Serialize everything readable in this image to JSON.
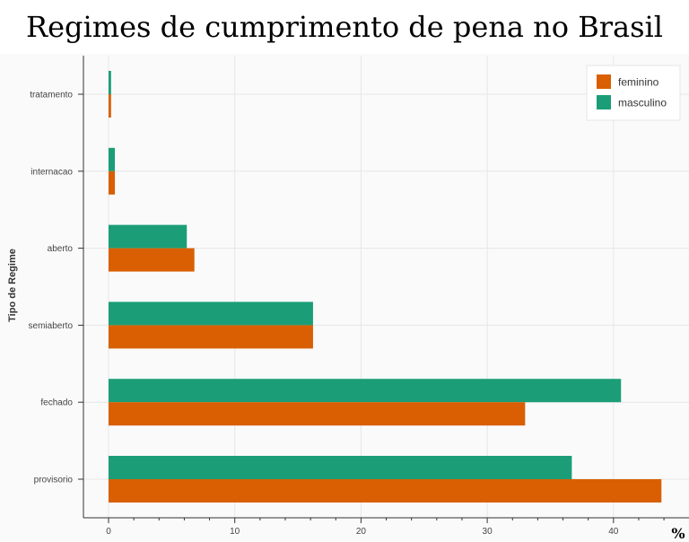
{
  "chart_data": {
    "type": "bar",
    "orientation": "horizontal",
    "title": "Regimes de cumprimento de pena no Brasil",
    "ylabel": "Tipo de Regime",
    "xlabel": "",
    "unit_label": "%",
    "categories": [
      "tratamento",
      "internacao",
      "aberto",
      "semiaberto",
      "fechado",
      "provisorio"
    ],
    "series": [
      {
        "name": "feminino",
        "color": "#d95f02",
        "values": [
          0.2,
          0.5,
          6.8,
          16.2,
          33.0,
          43.8
        ]
      },
      {
        "name": "masculino",
        "color": "#1b9e77",
        "values": [
          0.2,
          0.5,
          6.2,
          16.2,
          40.6,
          36.7
        ]
      }
    ],
    "xticks": [
      0,
      10,
      20,
      30,
      40
    ],
    "xlim": [
      -2,
      45.5
    ],
    "grid": true,
    "legend_position": "top-right",
    "background": "#fafafa"
  }
}
